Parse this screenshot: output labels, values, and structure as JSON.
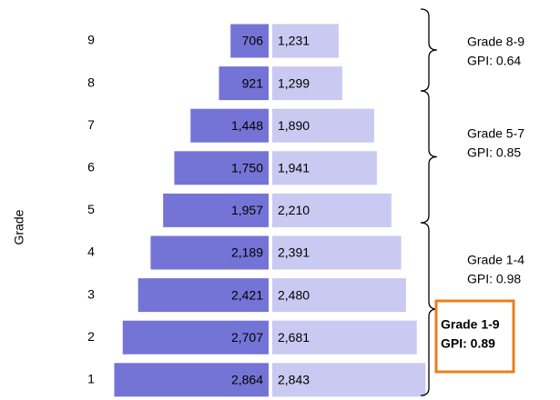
{
  "chart_data": {
    "type": "bar",
    "y_label": "Grade",
    "categories": [
      "9",
      "8",
      "7",
      "6",
      "5",
      "4",
      "3",
      "2",
      "1"
    ],
    "series": [
      {
        "color": "#7474d6",
        "values": [
          706,
          921,
          1448,
          1750,
          1957,
          2189,
          2421,
          2707,
          2864
        ],
        "value_labels": [
          "706",
          "921",
          "1,448",
          "1,750",
          "1,957",
          "2,189",
          "2,421",
          "2,707",
          "2,864"
        ]
      },
      {
        "color": "#c9c9f1",
        "values": [
          1231,
          1299,
          1890,
          1941,
          2210,
          2391,
          2480,
          2681,
          2843
        ],
        "value_labels": [
          "1,231",
          "1,299",
          "1,890",
          "1,941",
          "2,210",
          "2,391",
          "2,480",
          "2,681",
          "2,843"
        ]
      }
    ],
    "annotations": [
      {
        "lines": [
          "Grade 8-9",
          "GPI:  0.64"
        ]
      },
      {
        "lines": [
          "Grade 5-7",
          "GPI:  0.85"
        ]
      },
      {
        "lines": [
          "Grade 1-4",
          "GPI:  0.98"
        ]
      },
      {
        "lines": [
          "Grade 1-9",
          "GPI:  0.89"
        ],
        "highlight": true,
        "color": "#e8801e"
      }
    ]
  }
}
